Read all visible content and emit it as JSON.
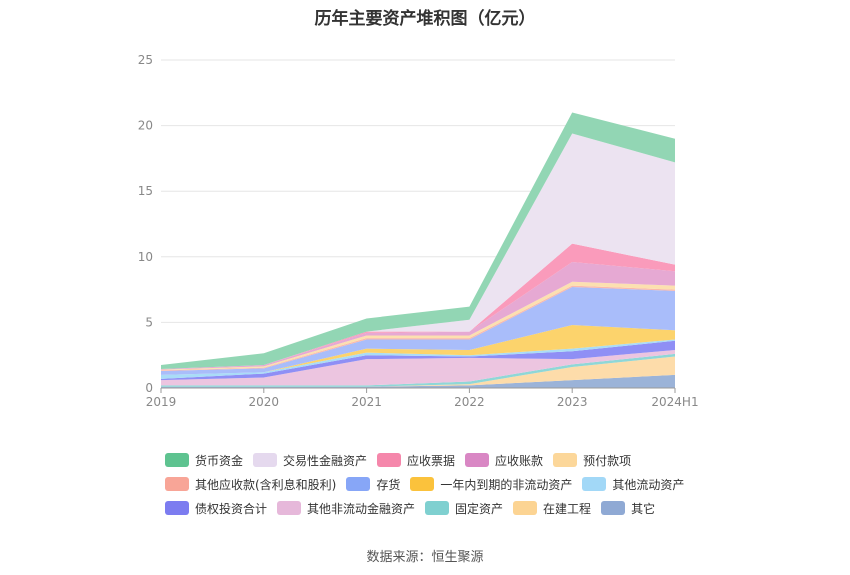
{
  "chart_data": {
    "type": "area",
    "stacked": true,
    "title": "历年主要资产堆积图（亿元）",
    "source": "数据来源：恒生聚源",
    "categories": [
      "2019",
      "2020",
      "2021",
      "2022",
      "2023",
      "2024H1"
    ],
    "ylim": [
      0,
      25
    ],
    "yticks": [
      0,
      5,
      10,
      15,
      20,
      25
    ],
    "grid": true,
    "legend_position": "bottom",
    "series": [
      {
        "name": "其它",
        "color": "#9bb3d8",
        "values": [
          0.1,
          0.1,
          0.1,
          0.2,
          0.6,
          1.0
        ]
      },
      {
        "name": "在建工程",
        "color": "#fddcaa",
        "values": [
          0.0,
          0.0,
          0.0,
          0.1,
          1.0,
          1.4
        ]
      },
      {
        "name": "固定资产",
        "color": "#8fd7d7",
        "values": [
          0.1,
          0.1,
          0.1,
          0.2,
          0.2,
          0.2
        ]
      },
      {
        "name": "其他非流动金融资产",
        "color": "#ecc5e0",
        "values": [
          0.4,
          0.6,
          2.0,
          1.8,
          0.4,
          0.3
        ]
      },
      {
        "name": "债权投资合计",
        "color": "#8f8ff5",
        "values": [
          0.1,
          0.3,
          0.3,
          0.1,
          0.6,
          0.7
        ]
      },
      {
        "name": "其他流动资产",
        "color": "#a9dcf7",
        "values": [
          0.3,
          0.1,
          0.2,
          0.1,
          0.2,
          0.1
        ]
      },
      {
        "name": "一年内到期的非流动资产",
        "color": "#fcd36c",
        "values": [
          0.0,
          0.0,
          0.3,
          0.4,
          1.8,
          0.7
        ]
      },
      {
        "name": "存货",
        "color": "#a9bdfa",
        "values": [
          0.3,
          0.3,
          0.7,
          0.8,
          2.9,
          3.0
        ]
      },
      {
        "name": "其他应收款(含利息和股利)",
        "color": "#fab9ac",
        "values": [
          0.05,
          0.05,
          0.1,
          0.1,
          0.1,
          0.1
        ]
      },
      {
        "name": "预付款项",
        "color": "#fce0b0",
        "values": [
          0.05,
          0.1,
          0.2,
          0.2,
          0.3,
          0.3
        ]
      },
      {
        "name": "应收账款",
        "color": "#e6a9d3",
        "values": [
          0.05,
          0.1,
          0.2,
          0.3,
          1.5,
          1.1
        ]
      },
      {
        "name": "应收票据",
        "color": "#fa9bbb",
        "values": [
          0.0,
          0.0,
          0.1,
          0.0,
          1.4,
          0.5
        ]
      },
      {
        "name": "交易性金融资产",
        "color": "#ece3f1",
        "values": [
          0.0,
          0.0,
          0.0,
          0.9,
          8.4,
          7.8
        ]
      },
      {
        "name": "货币资金",
        "color": "#92d6b4",
        "values": [
          0.3,
          0.9,
          1.0,
          1.0,
          1.6,
          1.8
        ]
      }
    ]
  },
  "legend": {
    "rows": [
      [
        {
          "label": "货币资金",
          "color": "#5ec390"
        },
        {
          "label": "交易性金融资产",
          "color": "#e5d9ee"
        },
        {
          "label": "应收票据",
          "color": "#f587ab"
        },
        {
          "label": "应收账款",
          "color": "#d987c4"
        },
        {
          "label": "预付款项",
          "color": "#fcd79a"
        }
      ],
      [
        {
          "label": "其他应收款(含利息和股利)",
          "color": "#f8a597"
        },
        {
          "label": "存货",
          "color": "#87a6f7"
        },
        {
          "label": "一年内到期的非流动资产",
          "color": "#fbc23c"
        },
        {
          "label": "其他流动资产",
          "color": "#a2d8f7"
        }
      ],
      [
        {
          "label": "债权投资合计",
          "color": "#7c7cf0"
        },
        {
          "label": "其他非流动金融资产",
          "color": "#e6b8da"
        },
        {
          "label": "固定资产",
          "color": "#7fd0d0"
        },
        {
          "label": "在建工程",
          "color": "#fcd493"
        },
        {
          "label": "其它",
          "color": "#8fa9d4"
        }
      ]
    ]
  }
}
